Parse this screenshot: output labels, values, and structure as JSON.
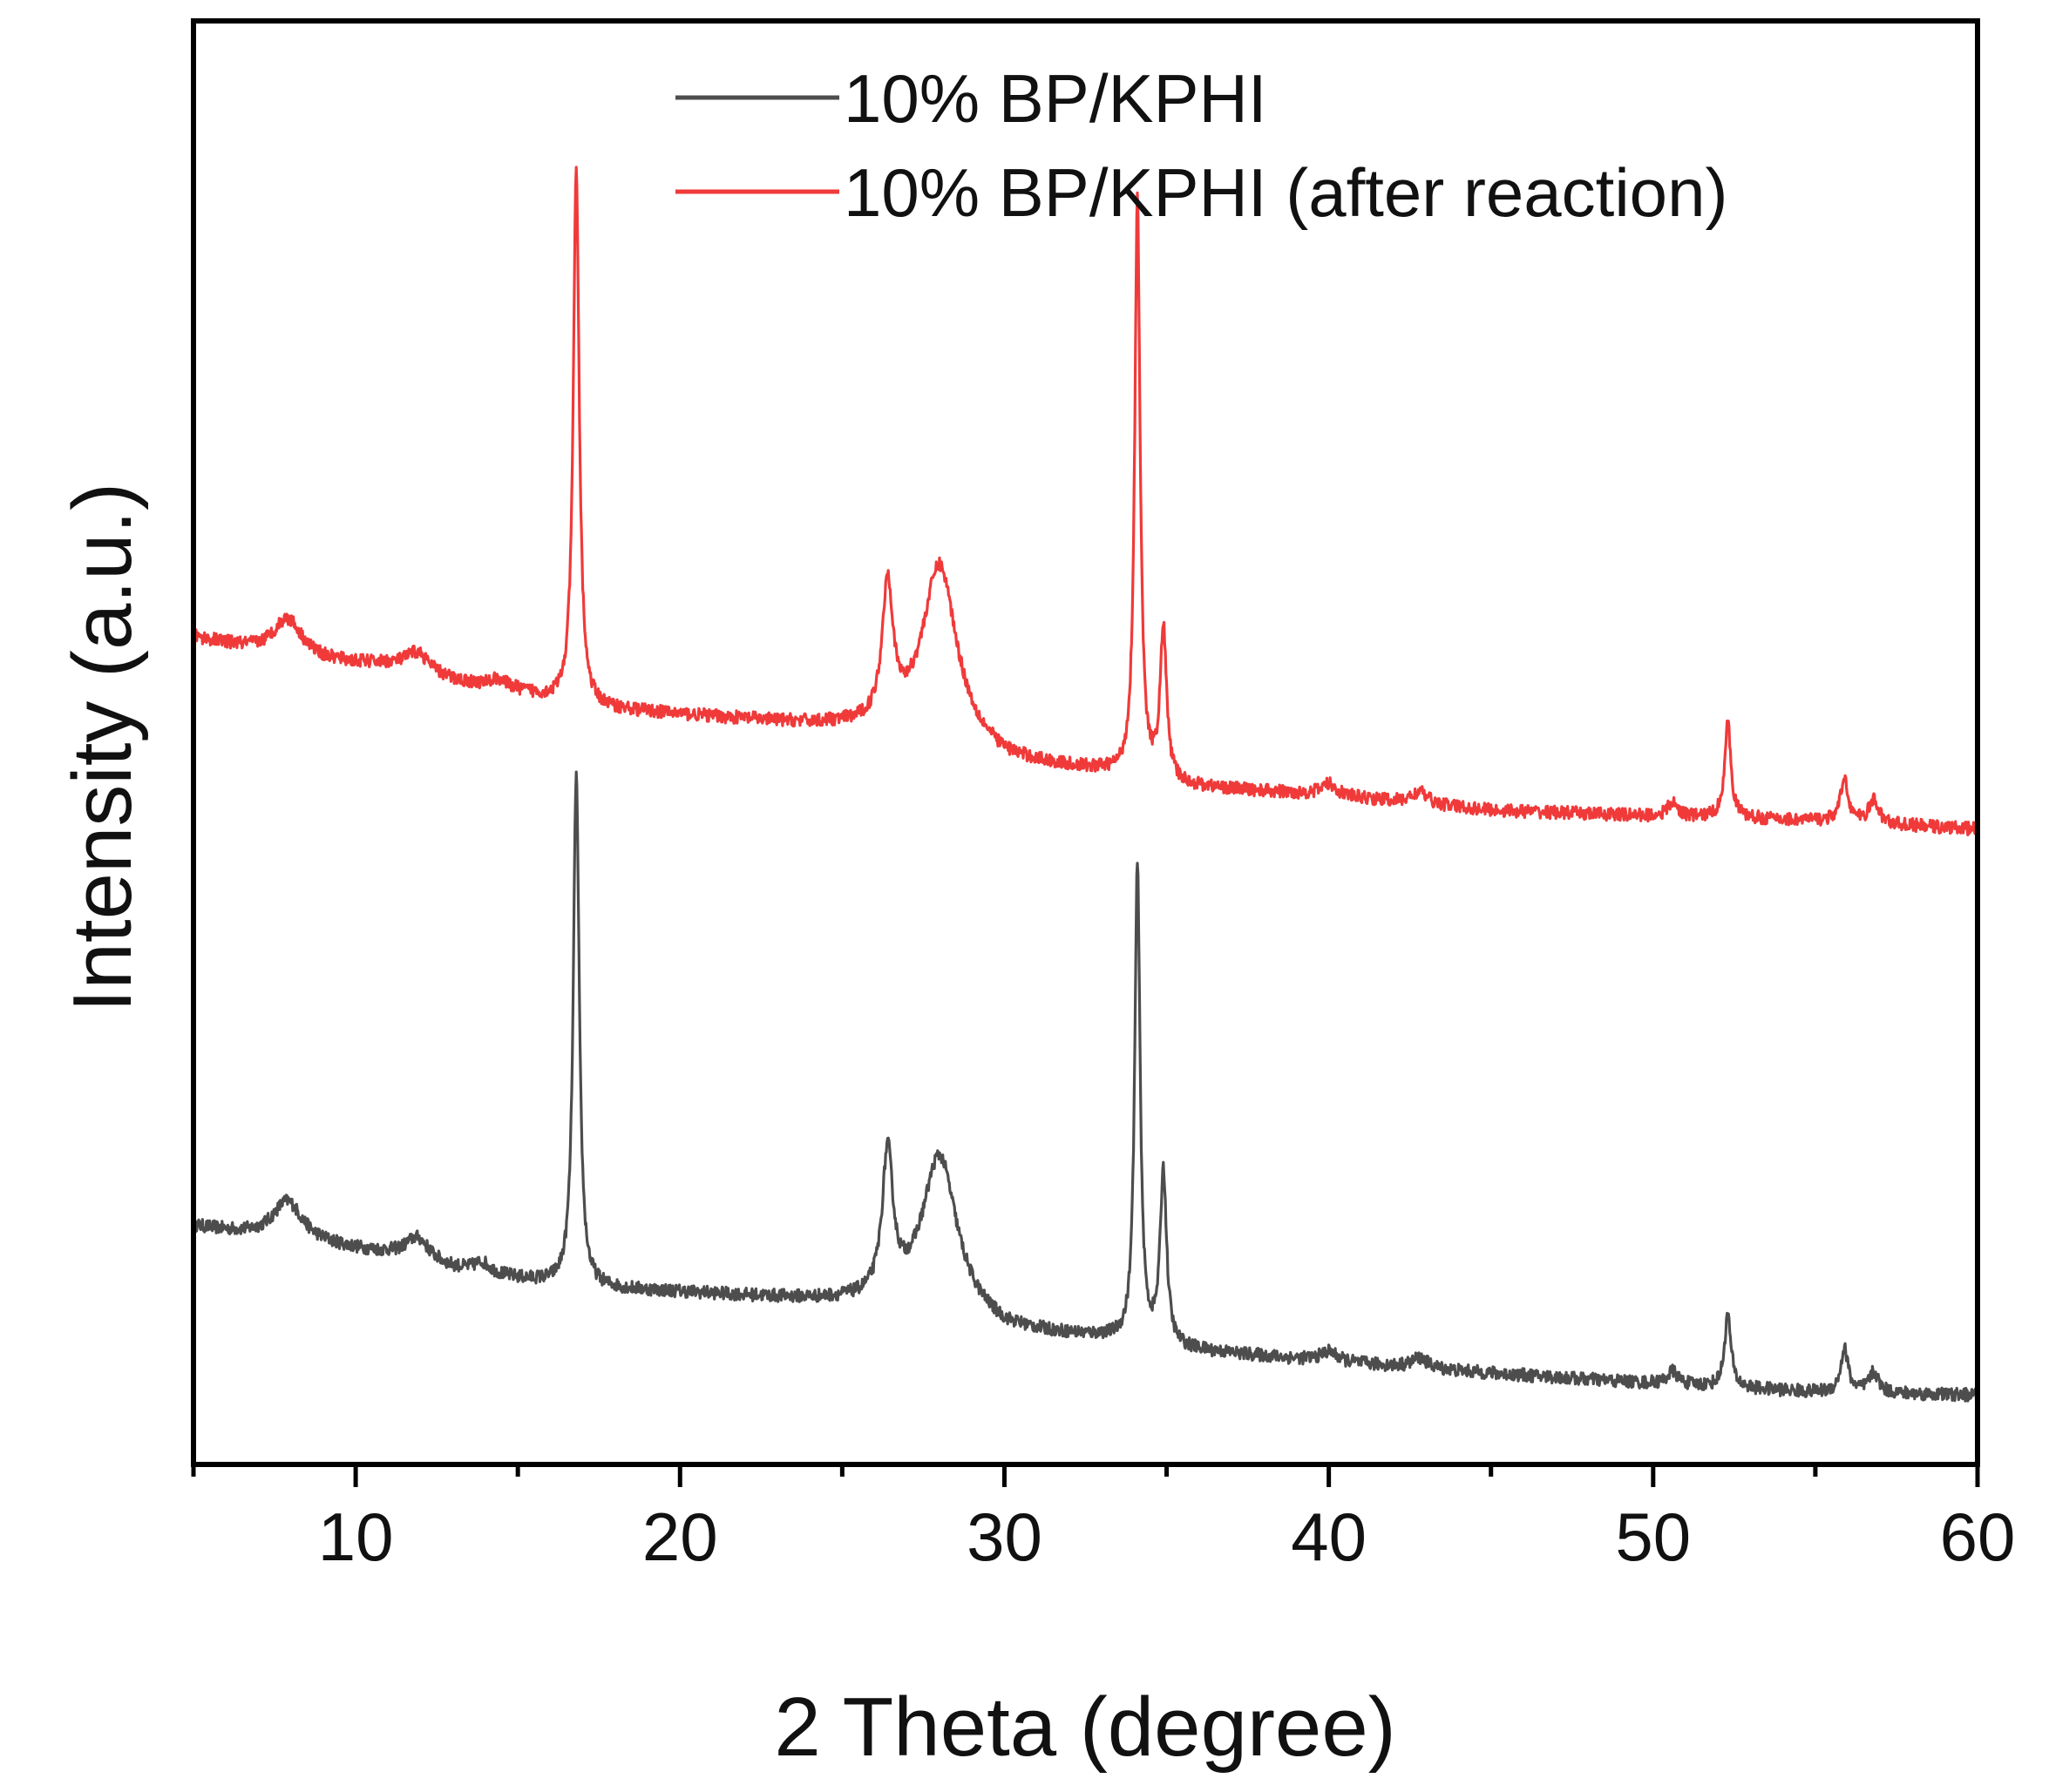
{
  "chart_data": {
    "type": "line",
    "title": "",
    "xlabel": "2 Theta (degree)",
    "ylabel": "Intensity (a.u.)",
    "xlim": [
      5,
      60
    ],
    "ylim": [
      0,
      100
    ],
    "xticks": [
      10,
      20,
      30,
      40,
      50,
      60
    ],
    "xtick_labels": [
      "10",
      "20",
      "30",
      "40",
      "50",
      "60"
    ],
    "y_ticks_labeled": false,
    "grid": false,
    "legend_position": "top-center",
    "series": [
      {
        "name": "10% BP/KPHI",
        "color": "#4d4d4d",
        "baseline": [
          [
            5,
            16.5
          ],
          [
            7,
            15.8
          ],
          [
            9,
            15.2
          ],
          [
            11,
            14.5
          ],
          [
            13,
            13.5
          ],
          [
            15,
            12.8
          ],
          [
            17,
            12.2
          ],
          [
            20,
            11.9
          ],
          [
            25,
            11.2
          ],
          [
            28,
            10.8
          ],
          [
            30,
            9.2
          ],
          [
            33,
            8.7
          ],
          [
            35,
            8.0
          ],
          [
            40,
            7.1
          ],
          [
            45,
            6.3
          ],
          [
            50,
            5.6
          ],
          [
            55,
            5.0
          ],
          [
            60,
            4.8
          ]
        ],
        "peaks": [
          {
            "x": 7.9,
            "height": 2.7,
            "width": 0.55
          },
          {
            "x": 11.9,
            "height": 1.6,
            "width": 0.45
          },
          {
            "x": 13.9,
            "height": 0.7,
            "width": 0.3
          },
          {
            "x": 16.8,
            "height": 35.5,
            "width": 0.11
          },
          {
            "x": 26.4,
            "height": 9.8,
            "width": 0.2
          },
          {
            "x": 28.0,
            "height": 10.5,
            "width": 0.65
          },
          {
            "x": 34.1,
            "height": 33.0,
            "width": 0.1
          },
          {
            "x": 34.9,
            "height": 12.0,
            "width": 0.12
          },
          {
            "x": 40.0,
            "height": 0.7,
            "width": 0.3
          },
          {
            "x": 42.8,
            "height": 0.7,
            "width": 0.3
          },
          {
            "x": 50.6,
            "height": 0.9,
            "width": 0.2
          },
          {
            "x": 52.3,
            "height": 5.0,
            "width": 0.12
          },
          {
            "x": 55.9,
            "height": 3.0,
            "width": 0.14
          },
          {
            "x": 56.8,
            "height": 1.4,
            "width": 0.18
          }
        ]
      },
      {
        "name": "10% BP/KPHI (after reaction)",
        "color": "#f03a3a",
        "baseline": [
          [
            5,
            57.3
          ],
          [
            7,
            56.3
          ],
          [
            9,
            55.6
          ],
          [
            11,
            55.3
          ],
          [
            13,
            54.2
          ],
          [
            15,
            53.5
          ],
          [
            17,
            52.4
          ],
          [
            20,
            51.9
          ],
          [
            25,
            51.0
          ],
          [
            28,
            50.2
          ],
          [
            30,
            48.6
          ],
          [
            33,
            47.9
          ],
          [
            35,
            47.0
          ],
          [
            40,
            46.3
          ],
          [
            45,
            45.3
          ],
          [
            50,
            44.9
          ],
          [
            55,
            44.6
          ],
          [
            60,
            44.0
          ]
        ],
        "peaks": [
          {
            "x": 7.9,
            "height": 2.6,
            "width": 0.55
          },
          {
            "x": 11.9,
            "height": 1.4,
            "width": 0.45
          },
          {
            "x": 14.4,
            "height": 0.6,
            "width": 0.3
          },
          {
            "x": 16.8,
            "height": 37.0,
            "width": 0.11
          },
          {
            "x": 26.4,
            "height": 9.5,
            "width": 0.2
          },
          {
            "x": 28.0,
            "height": 12.0,
            "width": 0.65
          },
          {
            "x": 34.1,
            "height": 40.0,
            "width": 0.1
          },
          {
            "x": 34.9,
            "height": 10.5,
            "width": 0.12
          },
          {
            "x": 40.0,
            "height": 0.8,
            "width": 0.3
          },
          {
            "x": 42.8,
            "height": 0.8,
            "width": 0.3
          },
          {
            "x": 50.6,
            "height": 0.9,
            "width": 0.2
          },
          {
            "x": 52.3,
            "height": 6.5,
            "width": 0.12
          },
          {
            "x": 55.9,
            "height": 3.0,
            "width": 0.14
          },
          {
            "x": 56.8,
            "height": 1.6,
            "width": 0.18
          }
        ]
      }
    ]
  }
}
